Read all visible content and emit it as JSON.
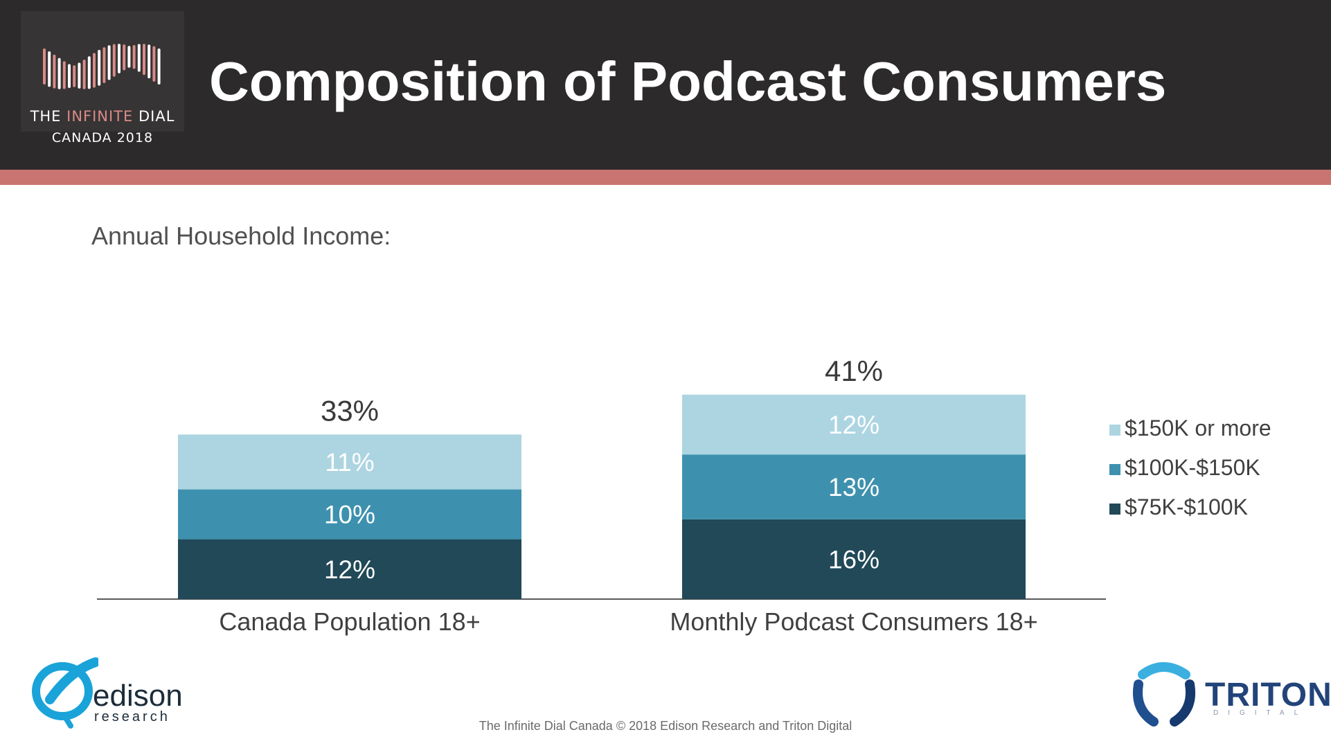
{
  "header": {
    "title": "Composition of Podcast Consumers",
    "logo": {
      "line1_prefix": "THE ",
      "line1_accent": "INFINITE",
      "line1_suffix": " DIAL",
      "line2": "CANADA 2018"
    }
  },
  "colors": {
    "header_bg": "#2c2a2b",
    "stripe": "#c97470",
    "series_150k": "#acd5e1",
    "series_100k": "#3d91ae",
    "series_75k": "#214958"
  },
  "chart_data": {
    "type": "bar",
    "stacked": true,
    "title": "Annual Household Income:",
    "categories": [
      "Canada Population 18+",
      "Monthly Podcast Consumers 18+"
    ],
    "totals": [
      33,
      41
    ],
    "total_labels": [
      "33%",
      "41%"
    ],
    "series": [
      {
        "name": "$75K-$100K",
        "values": [
          12,
          16
        ],
        "labels": [
          "12%",
          "16%"
        ],
        "color": "#214958"
      },
      {
        "name": "$100K-$150K",
        "values": [
          10,
          13
        ],
        "labels": [
          "10%",
          "13%"
        ],
        "color": "#3d91ae"
      },
      {
        "name": "$150K or more",
        "values": [
          11,
          12
        ],
        "labels": [
          "11%",
          "12%"
        ],
        "color": "#acd5e1"
      }
    ],
    "legend": {
      "position": "right",
      "order": [
        "$150K or more",
        "$100K-$150K",
        "$75K-$100K"
      ]
    },
    "grid": false,
    "unit": "%"
  },
  "footer": {
    "text": "The Infinite Dial Canada  © 2018 Edison Research and Triton Digital",
    "edison_word": "edison",
    "edison_sub": "research",
    "triton_word": "TRITON",
    "triton_sub": "DIGITAL"
  }
}
